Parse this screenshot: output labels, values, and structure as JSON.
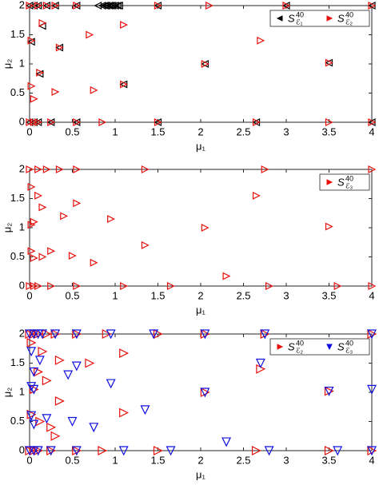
{
  "chart_data": [
    {
      "type": "scatter",
      "x_label": "μ₁",
      "y_label": "μ₂",
      "xlim": [
        0,
        4
      ],
      "ylim": [
        0,
        2
      ],
      "xticks": [
        0,
        0.5,
        1,
        1.5,
        2,
        2.5,
        3,
        3.5,
        4
      ],
      "yticks": [
        0,
        0.5,
        1,
        1.5,
        2
      ],
      "legend": "upper-right",
      "box": true,
      "series": [
        {
          "name": "S",
          "superscript": "40",
          "subscript": "ℰ₁",
          "color": "#000000",
          "marker": "triangle-left",
          "x": [
            0,
            0.05,
            0.1,
            0.2,
            0.3,
            0.55,
            0.8,
            0.85,
            0.88,
            0.9,
            0.93,
            0.95,
            0.97,
            1.0,
            1.03,
            1.05,
            1.5,
            3,
            4,
            0.15,
            0.02,
            0.12,
            0.35,
            1.1,
            2.05,
            3.5,
            0,
            0.05,
            0.1,
            0.25,
            0.55,
            1.5,
            2.65,
            4
          ],
          "y": [
            2,
            2,
            2,
            2,
            2,
            2,
            2,
            2,
            2,
            2,
            2,
            2,
            2,
            2,
            2,
            2,
            2,
            2,
            2,
            1.65,
            1.38,
            0.83,
            1.28,
            0.65,
            1.0,
            1.02,
            0,
            0,
            0,
            0,
            0,
            0,
            0,
            0
          ]
        },
        {
          "name": "S",
          "superscript": "40",
          "subscript": "ℰ₂",
          "color": "#e8100c",
          "marker": "triangle-right",
          "x": [
            0,
            0.1,
            0.2,
            0.3,
            0.55,
            1.5,
            2.1,
            3,
            4,
            0.15,
            0.7,
            1.1,
            0.02,
            0.35,
            0.12,
            0.02,
            0.05,
            0.3,
            0.75,
            1.1,
            2.05,
            2.7,
            3.5,
            0,
            0.05,
            0.1,
            0.25,
            0.55,
            0.85,
            1.5,
            2.65,
            3.5,
            4
          ],
          "y": [
            2,
            2,
            2,
            2,
            2,
            2,
            2,
            2,
            2,
            1.7,
            1.5,
            1.67,
            1.4,
            1.28,
            0.85,
            0.62,
            0.4,
            0.52,
            0.55,
            0.65,
            1.0,
            1.4,
            1.02,
            0,
            0,
            0,
            0,
            0,
            0,
            0,
            0,
            0,
            0
          ]
        }
      ]
    },
    {
      "type": "scatter",
      "x_label": "μ₁",
      "y_label": "μ₂",
      "xlim": [
        0,
        4
      ],
      "ylim": [
        0,
        2
      ],
      "xticks": [
        0,
        0.5,
        1,
        1.5,
        2,
        2.5,
        3,
        3.5,
        4
      ],
      "yticks": [
        0,
        0.5,
        1,
        1.5,
        2
      ],
      "legend": "upper-right",
      "box": true,
      "series": [
        {
          "name": "S",
          "superscript": "40",
          "subscript": "ℰ₃",
          "color": "#e8100c",
          "marker": "triangle-right",
          "x": [
            0,
            0.1,
            0.2,
            0.35,
            0.55,
            1.35,
            2.75,
            4,
            0.02,
            0.1,
            0.15,
            0.05,
            0.02,
            0.4,
            0.55,
            0.95,
            2.05,
            2.65,
            1.35,
            3.5,
            0.02,
            0.05,
            0.15,
            0.25,
            0.5,
            0.75,
            2.3,
            0,
            0.05,
            0.1,
            0.25,
            0.55,
            1.1,
            1.65,
            2.8,
            3.6,
            4
          ],
          "y": [
            2,
            2,
            2,
            2,
            2,
            2,
            2,
            2,
            1.7,
            1.55,
            1.35,
            1.1,
            1.05,
            1.2,
            1.42,
            1.15,
            1.0,
            1.55,
            0.7,
            1.02,
            0.6,
            0.48,
            0.5,
            0.6,
            0.52,
            0.4,
            0.17,
            0,
            0,
            0,
            0,
            0,
            0,
            0,
            0,
            0,
            0
          ]
        }
      ]
    },
    {
      "type": "scatter",
      "x_label": "μ₁",
      "y_label": "μ₂",
      "xlim": [
        0,
        4
      ],
      "ylim": [
        0,
        2
      ],
      "xticks": [
        0,
        0.5,
        1,
        1.5,
        2,
        2.5,
        3,
        3.5,
        4
      ],
      "yticks": [
        0,
        0.5,
        1,
        1.5,
        2
      ],
      "legend": "upper-right",
      "box": true,
      "series": [
        {
          "name": "S",
          "superscript": "40",
          "subscript": "ℰ₂",
          "color": "#e8100c",
          "marker": "triangle-right",
          "x": [
            0,
            0.05,
            0.1,
            0.2,
            0.3,
            0.55,
            0.9,
            1.5,
            2.05,
            2.75,
            4,
            0.02,
            0.15,
            0.35,
            0.1,
            0.2,
            0.05,
            0.35,
            0.02,
            0.12,
            0.25,
            0.3,
            1.1,
            0.7,
            1.1,
            2.05,
            2.7,
            3.5,
            0,
            0.05,
            0.1,
            0.25,
            0.55,
            0.85,
            1.5,
            2.65,
            3.5,
            4
          ],
          "y": [
            2,
            2,
            2,
            2,
            2,
            2,
            2,
            2,
            2,
            2,
            2,
            1.85,
            1.7,
            1.55,
            1.35,
            1.2,
            1.05,
            0.85,
            0.62,
            0.5,
            0.4,
            0.25,
            1.67,
            1.5,
            0.65,
            1.0,
            1.4,
            1.02,
            0,
            0,
            0,
            0,
            0,
            0,
            0,
            0,
            0,
            0
          ]
        },
        {
          "name": "S",
          "superscript": "40",
          "subscript": "ℰ₃",
          "color": "#1010e0",
          "marker": "triangle-down",
          "x": [
            0,
            0.05,
            0.1,
            0.15,
            0.3,
            0.55,
            0.95,
            1.45,
            2.05,
            2.75,
            4,
            0.02,
            0.12,
            0.05,
            0.02,
            0.05,
            0.45,
            0.55,
            0.95,
            2.05,
            2.7,
            1.35,
            3.5,
            4,
            0.02,
            0.05,
            0.2,
            0.5,
            0.75,
            2.3,
            0,
            0.05,
            0.1,
            0.25,
            0.55,
            1.1,
            1.65,
            2.8,
            3.6,
            4
          ],
          "y": [
            2,
            2,
            2,
            2,
            2,
            2,
            2,
            2,
            2,
            2,
            2,
            1.7,
            1.55,
            1.35,
            1.1,
            1.05,
            1.3,
            1.45,
            1.15,
            1.0,
            1.5,
            0.7,
            1.02,
            1.05,
            0.6,
            0.45,
            0.55,
            0.5,
            0.4,
            0.15,
            0,
            0,
            0,
            0,
            0,
            0,
            0,
            0,
            0,
            0
          ]
        }
      ]
    }
  ]
}
